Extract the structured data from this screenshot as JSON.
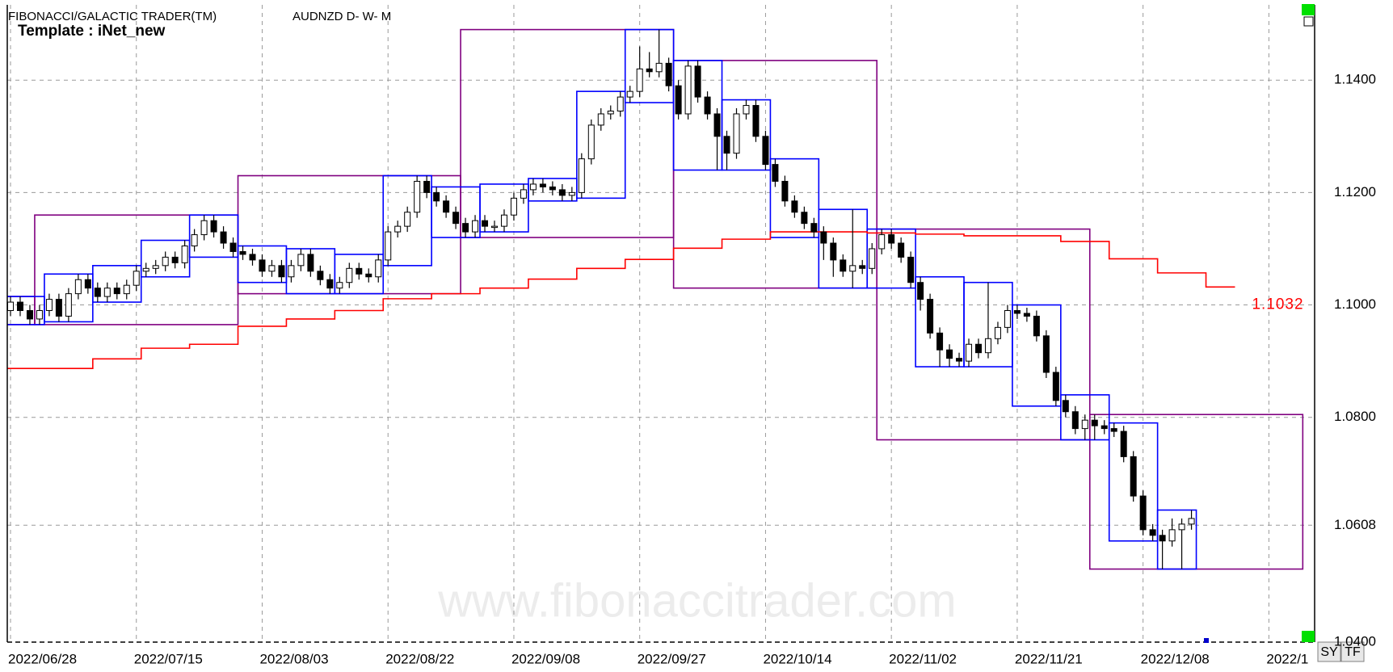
{
  "header": {
    "title": "FIBONACCI/GALACTIC TRADER(TM)",
    "symbol": "AUDNZD D- W- M",
    "template": "Template : iNet_new"
  },
  "watermark": "www.fibonaccitrader.com",
  "buttons": [
    "SY",
    "TF"
  ],
  "chart_data": {
    "type": "candlestick",
    "categories": [
      "2022/06/28",
      null,
      null,
      null,
      null,
      null,
      null,
      null,
      null,
      null,
      null,
      null,
      null,
      "2022/07/15",
      null,
      null,
      null,
      null,
      null,
      null,
      null,
      null,
      null,
      null,
      null,
      null,
      "2022/08/03",
      null,
      null,
      null,
      null,
      null,
      null,
      null,
      null,
      null,
      null,
      null,
      null,
      "2022/08/22",
      null,
      null,
      null,
      null,
      null,
      null,
      null,
      null,
      null,
      null,
      null,
      null,
      "2022/09/08",
      null,
      null,
      null,
      null,
      null,
      null,
      null,
      null,
      null,
      null,
      null,
      null,
      "2022/09/27",
      null,
      null,
      null,
      null,
      null,
      null,
      null,
      null,
      null,
      null,
      null,
      null,
      "2022/10/14",
      null,
      null,
      null,
      null,
      null,
      null,
      null,
      null,
      null,
      null,
      null,
      null,
      "2022/11/02",
      null,
      null,
      null,
      null,
      null,
      null,
      null,
      null,
      null,
      null,
      null,
      null,
      "2022/11/21",
      null,
      null,
      null,
      null,
      null,
      null,
      null,
      null,
      null,
      null,
      null,
      null,
      "2022/12/08",
      null,
      null,
      null,
      null,
      null
    ],
    "extra_x_label": "2022/1",
    "open": [
      1.099,
      1.1005,
      1.099,
      1.0975,
      1.099,
      1.101,
      1.098,
      1.102,
      1.1045,
      1.103,
      1.1015,
      1.103,
      1.102,
      1.1035,
      1.106,
      1.1065,
      1.107,
      1.1085,
      1.1075,
      1.1105,
      1.1125,
      1.115,
      1.113,
      1.111,
      1.1095,
      1.109,
      1.108,
      1.106,
      1.107,
      1.105,
      1.107,
      1.109,
      1.106,
      1.1045,
      1.103,
      1.104,
      1.1065,
      1.1055,
      1.105,
      1.108,
      1.113,
      1.114,
      1.1165,
      1.122,
      1.12,
      1.1185,
      1.1165,
      1.1145,
      1.113,
      1.115,
      1.114,
      1.114,
      1.116,
      1.119,
      1.1205,
      1.1215,
      1.121,
      1.1205,
      1.1195,
      1.12,
      1.126,
      1.132,
      1.134,
      1.1345,
      1.137,
      1.138,
      1.142,
      1.1415,
      1.143,
      1.139,
      1.134,
      1.1425,
      1.137,
      1.134,
      1.13,
      1.127,
      1.134,
      1.1355,
      1.13,
      1.125,
      1.122,
      1.1185,
      1.1165,
      1.1145,
      1.113,
      1.111,
      1.108,
      1.106,
      1.107,
      1.1065,
      1.11,
      1.1125,
      1.111,
      1.1085,
      1.104,
      1.101,
      1.095,
      1.092,
      1.0905,
      1.09,
      1.093,
      1.0915,
      1.094,
      1.096,
      1.099,
      1.0985,
      1.098,
      1.0945,
      1.088,
      1.083,
      1.081,
      1.078,
      1.0795,
      1.0785,
      1.078,
      1.0775,
      1.073,
      1.066,
      1.06,
      1.059,
      1.058,
      1.06,
      1.061
    ],
    "high": [
      1.1015,
      1.1015,
      1.1,
      1.1,
      1.102,
      1.102,
      1.103,
      1.1055,
      1.1055,
      1.104,
      1.104,
      1.104,
      1.1045,
      1.107,
      1.1075,
      1.108,
      1.1095,
      1.1095,
      1.1115,
      1.1135,
      1.116,
      1.116,
      1.114,
      1.112,
      1.1105,
      1.11,
      1.109,
      1.108,
      1.108,
      1.108,
      1.11,
      1.11,
      1.107,
      1.1055,
      1.105,
      1.1075,
      1.1075,
      1.1065,
      1.109,
      1.114,
      1.115,
      1.1175,
      1.123,
      1.123,
      1.121,
      1.1195,
      1.1175,
      1.1155,
      1.116,
      1.116,
      1.115,
      1.117,
      1.12,
      1.1215,
      1.1225,
      1.1225,
      1.122,
      1.1215,
      1.121,
      1.127,
      1.133,
      1.135,
      1.1355,
      1.138,
      1.139,
      1.146,
      1.145,
      1.149,
      1.144,
      1.14,
      1.1435,
      1.1435,
      1.138,
      1.135,
      1.131,
      1.135,
      1.1365,
      1.1365,
      1.131,
      1.126,
      1.123,
      1.1195,
      1.1175,
      1.1155,
      1.114,
      1.112,
      1.109,
      1.117,
      1.108,
      1.111,
      1.1135,
      1.1135,
      1.112,
      1.1095,
      1.105,
      1.102,
      1.096,
      1.093,
      1.0915,
      1.094,
      1.094,
      1.104,
      1.097,
      1.1,
      1.1,
      1.0995,
      1.099,
      1.0955,
      1.089,
      1.084,
      1.082,
      1.0805,
      1.0805,
      1.0795,
      1.079,
      1.0785,
      1.074,
      1.067,
      1.061,
      1.06,
      1.062,
      1.062,
      1.0635
    ],
    "low": [
      1.098,
      1.098,
      1.0965,
      1.0965,
      1.098,
      1.097,
      1.097,
      1.101,
      1.102,
      1.1005,
      1.1005,
      1.101,
      1.101,
      1.1025,
      1.105,
      1.1055,
      1.106,
      1.1065,
      1.1065,
      1.1095,
      1.1115,
      1.112,
      1.11,
      1.1085,
      1.108,
      1.107,
      1.105,
      1.105,
      1.104,
      1.104,
      1.106,
      1.105,
      1.1035,
      1.102,
      1.102,
      1.103,
      1.1045,
      1.104,
      1.104,
      1.107,
      1.112,
      1.113,
      1.1155,
      1.119,
      1.1175,
      1.1155,
      1.1135,
      1.112,
      1.112,
      1.113,
      1.113,
      1.113,
      1.115,
      1.118,
      1.1195,
      1.12,
      1.1195,
      1.1185,
      1.1185,
      1.119,
      1.125,
      1.131,
      1.133,
      1.1335,
      1.136,
      1.137,
      1.1405,
      1.1405,
      1.138,
      1.133,
      1.133,
      1.136,
      1.133,
      1.124,
      1.124,
      1.126,
      1.133,
      1.129,
      1.124,
      1.121,
      1.1175,
      1.1155,
      1.1135,
      1.112,
      1.108,
      1.105,
      1.105,
      1.103,
      1.1055,
      1.1055,
      1.109,
      1.11,
      1.1075,
      1.103,
      1.099,
      1.094,
      1.089,
      1.089,
      1.089,
      1.089,
      1.0905,
      1.0905,
      1.093,
      1.095,
      1.0975,
      1.097,
      1.0935,
      1.087,
      1.082,
      1.08,
      1.077,
      1.076,
      1.076,
      1.077,
      1.0765,
      1.072,
      1.065,
      1.059,
      1.058,
      1.053,
      1.057,
      1.053,
      1.06
    ],
    "close": [
      1.1005,
      1.099,
      1.0975,
      1.099,
      1.101,
      1.098,
      1.102,
      1.1045,
      1.103,
      1.1015,
      1.103,
      1.102,
      1.1035,
      1.106,
      1.1065,
      1.107,
      1.1085,
      1.1075,
      1.1105,
      1.1125,
      1.115,
      1.113,
      1.111,
      1.1095,
      1.109,
      1.108,
      1.106,
      1.107,
      1.105,
      1.107,
      1.109,
      1.106,
      1.1045,
      1.103,
      1.104,
      1.1065,
      1.1055,
      1.105,
      1.108,
      1.113,
      1.114,
      1.1165,
      1.122,
      1.12,
      1.1185,
      1.1165,
      1.1145,
      1.113,
      1.115,
      1.114,
      1.114,
      1.116,
      1.119,
      1.1205,
      1.1215,
      1.121,
      1.1205,
      1.1195,
      1.12,
      1.126,
      1.132,
      1.134,
      1.1345,
      1.137,
      1.138,
      1.142,
      1.1415,
      1.143,
      1.139,
      1.134,
      1.1425,
      1.137,
      1.134,
      1.13,
      1.127,
      1.134,
      1.1355,
      1.13,
      1.125,
      1.122,
      1.1185,
      1.1165,
      1.1145,
      1.113,
      1.111,
      1.108,
      1.106,
      1.107,
      1.1065,
      1.11,
      1.1125,
      1.111,
      1.1085,
      1.104,
      1.101,
      1.095,
      1.092,
      1.0905,
      1.09,
      1.093,
      1.0915,
      1.094,
      1.096,
      1.099,
      1.0985,
      1.098,
      1.0945,
      1.088,
      1.083,
      1.081,
      1.078,
      1.0795,
      1.0785,
      1.078,
      1.0775,
      1.073,
      1.066,
      1.06,
      1.059,
      1.058,
      1.06,
      1.061,
      1.062
    ],
    "up_color": "#ffffff",
    "down_color": "#000000",
    "weekly_box_color": "#0000ff",
    "monthly_box_color": "#800080",
    "moving_average": {
      "color": "#ff0000",
      "values": [
        1.0887,
        1.0887,
        1.0904,
        1.0923,
        1.093,
        1.0962,
        1.0975,
        1.099,
        1.1011,
        1.102,
        1.103,
        1.1046,
        1.1065,
        1.1081,
        1.1101,
        1.1117,
        1.113,
        1.113,
        1.1128,
        1.1126,
        1.1123,
        1.1123,
        1.1113,
        1.1082,
        1.1057,
        1.1032
      ],
      "last_label": "1.1032"
    },
    "ylim": [
      1.04,
      1.1534
    ],
    "yticks": [
      {
        "value": 1.04,
        "label": "1.0400"
      },
      {
        "value": 1.0608,
        "label": "1.0608"
      },
      {
        "value": 1.08,
        "label": "1.0800"
      },
      {
        "value": 1.1,
        "label": "1.1000"
      },
      {
        "value": 1.12,
        "label": "1.1200"
      },
      {
        "value": 1.14,
        "label": "1.1400"
      }
    ],
    "grid": true
  }
}
